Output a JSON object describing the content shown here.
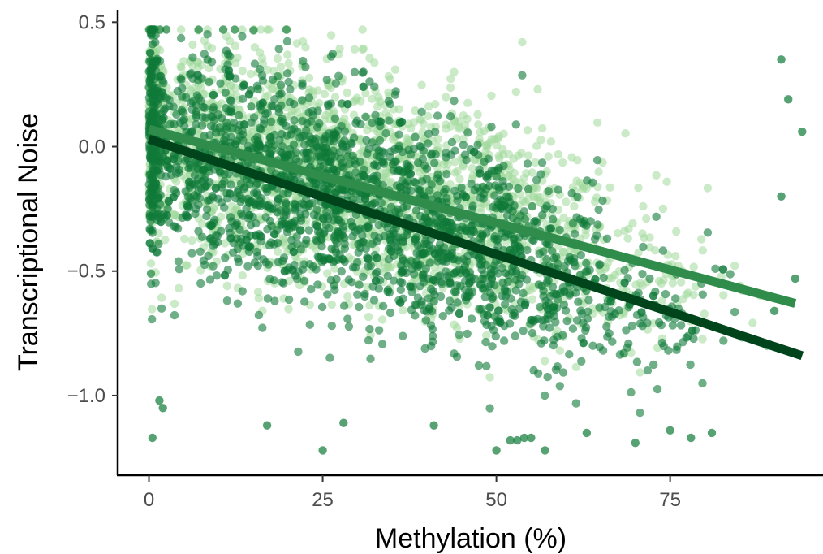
{
  "chart_data": {
    "type": "scatter",
    "xlabel": "Methylation (%)",
    "ylabel": "Transcriptional Noise",
    "xlim": [
      -4.5,
      97
    ],
    "ylim": [
      -1.32,
      0.55
    ],
    "x_ticks": [
      0,
      25,
      50,
      75
    ],
    "x_tick_labels": [
      "0",
      "25",
      "50",
      "75"
    ],
    "y_ticks": [
      0.5,
      0.0,
      -0.5,
      -1.0
    ],
    "y_tick_labels": [
      "0.5",
      "0.0",
      "−0.5",
      "−1.0"
    ],
    "grid": false,
    "legend": "none",
    "series": [
      {
        "color": "#a1d99b",
        "point_alpha": 0.55,
        "point_count_approx": 6000,
        "x_range": [
          0,
          93
        ],
        "y_range": [
          -1.05,
          0.47
        ],
        "trend_line": {
          "x": [
            0,
            93
          ],
          "y": [
            0.07,
            -0.63
          ],
          "color": "#2f8c4a"
        }
      },
      {
        "color": "#0f7a38",
        "point_alpha": 0.6,
        "point_count_approx": 6000,
        "x_range": [
          0,
          94
        ],
        "y_range": [
          -1.23,
          0.47
        ],
        "trend_line": {
          "x": [
            0,
            94
          ],
          "y": [
            0.03,
            -0.84
          ],
          "color": "#00441b"
        }
      }
    ],
    "outliers": [
      {
        "x": 0.5,
        "y": -1.17
      },
      {
        "x": 1.5,
        "y": -1.02
      },
      {
        "x": 2,
        "y": -1.05
      },
      {
        "x": 17,
        "y": -1.12
      },
      {
        "x": 25,
        "y": -1.22
      },
      {
        "x": 28,
        "y": -1.11
      },
      {
        "x": 41,
        "y": -1.12
      },
      {
        "x": 50,
        "y": -1.22
      },
      {
        "x": 52,
        "y": -1.18
      },
      {
        "x": 53,
        "y": -1.18
      },
      {
        "x": 54,
        "y": -1.17
      },
      {
        "x": 55,
        "y": -1.17
      },
      {
        "x": 57,
        "y": -1.22
      },
      {
        "x": 63,
        "y": -1.15
      },
      {
        "x": 70,
        "y": -1.19
      },
      {
        "x": 75,
        "y": -1.14
      },
      {
        "x": 78,
        "y": -1.17
      },
      {
        "x": 81,
        "y": -1.15
      },
      {
        "x": 91,
        "y": 0.35
      },
      {
        "x": 92,
        "y": 0.19
      },
      {
        "x": 94,
        "y": 0.06
      },
      {
        "x": 93,
        "y": -0.53
      },
      {
        "x": 91,
        "y": -0.2
      },
      {
        "x": 90,
        "y": -0.66
      }
    ]
  }
}
